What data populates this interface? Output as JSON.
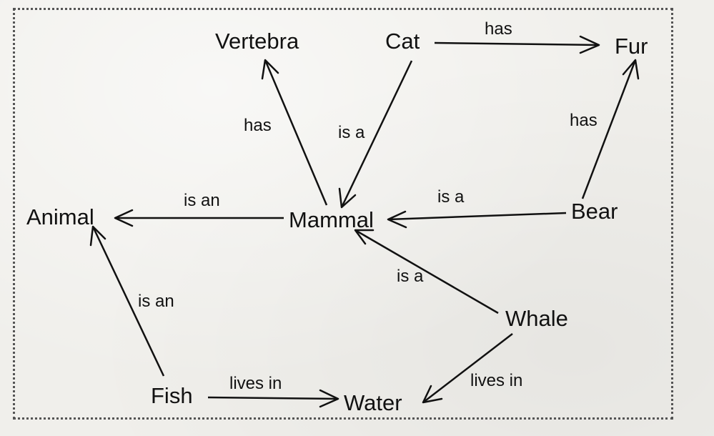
{
  "nodes": {
    "vertebra": "Vertebra",
    "cat": "Cat",
    "fur": "Fur",
    "animal": "Animal",
    "mammal": "Mammal",
    "bear": "Bear",
    "whale": "Whale",
    "fish": "Fish",
    "water": "Water"
  },
  "edges": {
    "cat_has_fur": "has",
    "mammal_has_vertebra": "has",
    "cat_isa_mammal": "is a",
    "bear_has_fur": "has",
    "mammal_isan_animal": "is an",
    "bear_isa_mammal": "is a",
    "whale_isa_mammal": "is a",
    "fish_isan_animal": "is an",
    "fish_livesin_water": "lives in",
    "whale_livesin_water": "lives in"
  }
}
